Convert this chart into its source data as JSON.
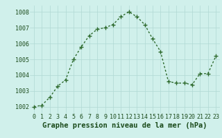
{
  "x": [
    0,
    1,
    2,
    3,
    4,
    5,
    6,
    7,
    8,
    9,
    10,
    11,
    12,
    13,
    14,
    15,
    16,
    17,
    18,
    19,
    20,
    21,
    22,
    23
  ],
  "y": [
    1002.0,
    1002.1,
    1002.6,
    1003.3,
    1003.7,
    1005.0,
    1005.8,
    1006.5,
    1006.9,
    1007.0,
    1007.2,
    1007.7,
    1008.0,
    1007.7,
    1007.2,
    1006.3,
    1005.5,
    1003.6,
    1003.5,
    1003.5,
    1003.4,
    1004.1,
    1004.1,
    1005.2
  ],
  "line_color": "#2d6a2d",
  "marker": "+",
  "marker_size": 4,
  "line_width": 1.0,
  "bg_color": "#d0f0eb",
  "grid_color": "#b0d8d4",
  "xlabel": "Graphe pression niveau de la mer (hPa)",
  "xlabel_fontsize": 7.5,
  "xlabel_color": "#1a4a1a",
  "yticks": [
    1002,
    1003,
    1004,
    1005,
    1006,
    1007,
    1008
  ],
  "ylim": [
    1001.6,
    1008.4
  ],
  "xlim": [
    -0.5,
    23.5
  ],
  "xtick_labels": [
    "0",
    "1",
    "2",
    "3",
    "4",
    "5",
    "6",
    "7",
    "8",
    "9",
    "10",
    "11",
    "12",
    "13",
    "14",
    "15",
    "16",
    "17",
    "18",
    "19",
    "20",
    "21",
    "22",
    "23"
  ],
  "tick_fontsize": 6.0,
  "tick_color": "#1a4a1a"
}
